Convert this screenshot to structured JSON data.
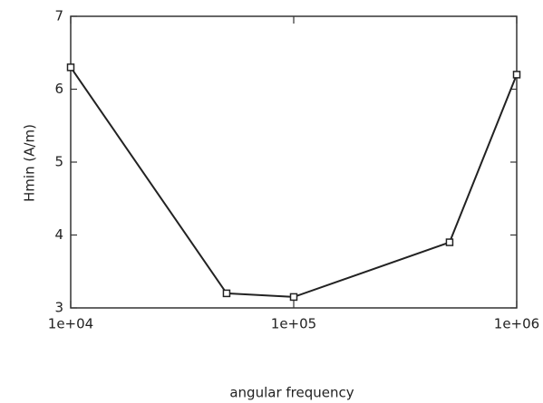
{
  "chart_data": {
    "type": "line",
    "x_label": "angular frequency",
    "y_label": "Hmin (A/m)",
    "x": [
      10000,
      50000,
      100000,
      500000,
      1000000
    ],
    "series": [
      {
        "color": "#222222",
        "values": [
          6.3,
          3.2,
          3.15,
          3.9,
          6.2
        ]
      }
    ],
    "xscale": "log",
    "xlim": [
      10000,
      1000000
    ],
    "xticks": [
      {
        "value": 10000,
        "label": "1e+04"
      },
      {
        "value": 100000,
        "label": "1e+05"
      },
      {
        "value": 1000000,
        "label": "1e+06"
      }
    ],
    "ylim": [
      3,
      7
    ],
    "yticks": [
      3,
      4,
      5,
      6,
      7
    ]
  }
}
